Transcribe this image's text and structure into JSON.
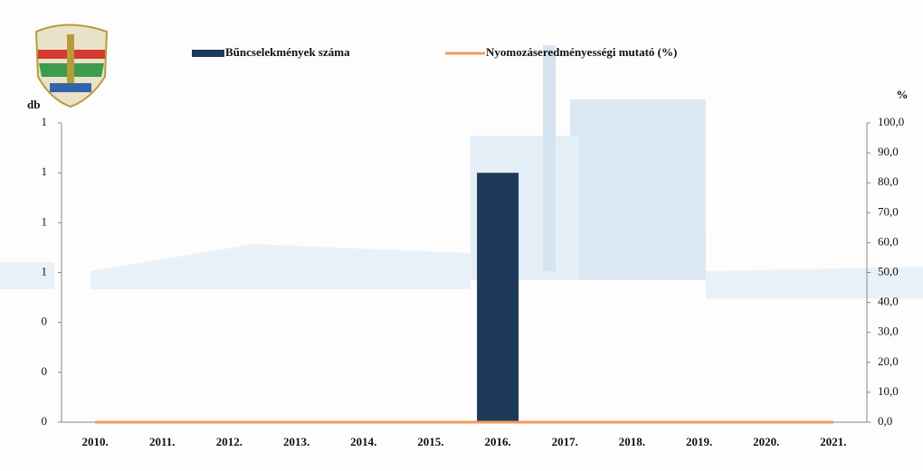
{
  "chart_data": {
    "type": "bar-line",
    "ylabel": "db",
    "y2label": "%",
    "categories": [
      "2010.",
      "2011.",
      "2012.",
      "2013.",
      "2014.",
      "2015.",
      "2016.",
      "2017.",
      "2018.",
      "2019.",
      "2020.",
      "2021."
    ],
    "series": [
      {
        "name": "Bűncselekmények száma",
        "type": "bar",
        "color": "#1e3a5a",
        "values": [
          0,
          0,
          0,
          0,
          0,
          0,
          1,
          0,
          0,
          0,
          0,
          0
        ]
      },
      {
        "name": "Nyomozáseredményességi mutató (%)",
        "type": "line",
        "axis": "y2",
        "color": "#f59a57",
        "values": [
          0,
          0,
          0,
          0,
          0,
          0,
          0,
          0,
          0,
          0,
          0,
          0
        ]
      }
    ],
    "ylim": [
      0,
      1.2
    ],
    "yticks": [
      0,
      {
        "value": 0.2,
        "label": "0"
      },
      {
        "value": 0.4,
        "label": "0"
      },
      {
        "value": 0.6,
        "label": "1"
      },
      {
        "value": 0.8,
        "label": "1"
      },
      1,
      {
        "value": 1.2,
        "label": "1"
      }
    ],
    "y2lim": [
      0,
      100
    ],
    "y2ticks": [
      {
        "value": 0,
        "label": "0,0"
      },
      {
        "value": 10,
        "label": "10,0"
      },
      {
        "value": 20,
        "label": "20,0"
      },
      {
        "value": 30,
        "label": "30,0"
      },
      {
        "value": 40,
        "label": "40,0"
      },
      {
        "value": 50,
        "label": "50,0"
      },
      {
        "value": 60,
        "label": "60,0"
      },
      {
        "value": 70,
        "label": "70,0"
      },
      {
        "value": 80,
        "label": "80,0"
      },
      {
        "value": 90,
        "label": "90,0"
      },
      {
        "value": 100,
        "label": "100,0"
      }
    ]
  }
}
